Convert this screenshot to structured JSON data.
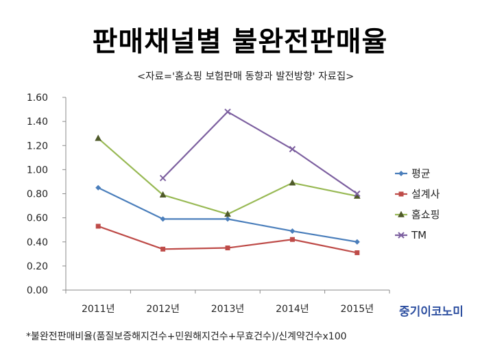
{
  "title": "판매채널별 불완전판매율",
  "source": "<자료='홈쇼핑 보험판매 동향과 발전방향' 자료집>",
  "brand": "중기이코노미",
  "footnote": "*불완전판매비율(품질보증해지건수+민원해지건수+무효건수)/신계약건수x100",
  "chart_data": {
    "type": "line",
    "categories": [
      "2011년",
      "2012년",
      "2013년",
      "2014년",
      "2015년"
    ],
    "ylim": [
      0,
      1.6
    ],
    "yticks": [
      "0.00",
      "0.20",
      "0.40",
      "0.60",
      "0.80",
      "1.00",
      "1.20",
      "1.40",
      "1.60"
    ],
    "grid": false,
    "legend": "right",
    "series": [
      {
        "name": "평균",
        "color": "#4a7ebb",
        "marker": "diamond",
        "values": [
          0.85,
          0.59,
          0.59,
          0.49,
          0.4
        ]
      },
      {
        "name": "설계사",
        "color": "#be4b48",
        "marker": "square",
        "values": [
          0.53,
          0.34,
          0.35,
          0.42,
          0.31
        ]
      },
      {
        "name": "홈쇼핑",
        "color": "#98b954",
        "marker": "triangle",
        "values": [
          1.26,
          0.79,
          0.63,
          0.89,
          0.78
        ]
      },
      {
        "name": "TM",
        "color": "#7d60a0",
        "marker": "x",
        "values": [
          null,
          0.93,
          1.48,
          1.17,
          0.8
        ]
      }
    ]
  }
}
